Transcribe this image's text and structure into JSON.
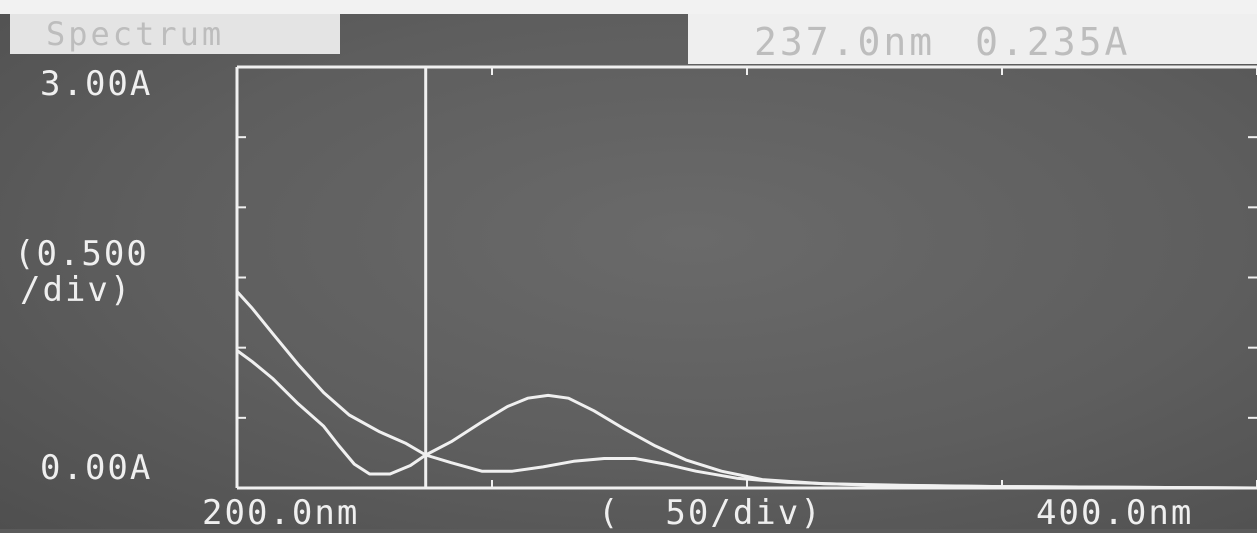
{
  "header": {
    "title": "Spectrum",
    "cursor_wavelength": "237.0nm",
    "cursor_absorbance": "0.235A"
  },
  "axes": {
    "y_max_label": "3.00A",
    "y_scale_label_1": "(0.500",
    "y_scale_label_2": "/div)",
    "y_min_label": "0.00A",
    "x_min_label": "200.0nm",
    "x_scale_label": "(  50/div)",
    "x_max_label": "400.0nm"
  },
  "colors": {
    "screen": "#5e5e5e",
    "trace": "#f0f0f0",
    "text": "#efefef"
  },
  "chart_data": {
    "type": "line",
    "title": "Spectrum",
    "xlabel": "",
    "ylabel": "",
    "xlim": [
      200,
      400
    ],
    "ylim": [
      0,
      3
    ],
    "x_tick_step": 50,
    "y_tick_step": 0.5,
    "cursor": {
      "x": 237.0,
      "y": 0.235
    },
    "series": [
      {
        "points": [
          [
            200,
            1.4
          ],
          [
            203,
            1.28
          ],
          [
            207,
            1.1
          ],
          [
            212,
            0.88
          ],
          [
            217,
            0.68
          ],
          [
            222,
            0.52
          ],
          [
            228,
            0.4
          ],
          [
            233,
            0.32
          ],
          [
            237,
            0.235
          ],
          [
            242,
            0.33
          ],
          [
            248,
            0.47
          ],
          [
            253,
            0.58
          ],
          [
            257,
            0.64
          ],
          [
            261,
            0.66
          ],
          [
            265,
            0.64
          ],
          [
            270,
            0.55
          ],
          [
            276,
            0.42
          ],
          [
            282,
            0.3
          ],
          [
            288,
            0.2
          ],
          [
            295,
            0.12
          ],
          [
            303,
            0.06
          ],
          [
            315,
            0.03
          ],
          [
            330,
            0.02
          ],
          [
            350,
            0.01
          ],
          [
            400,
            0.0
          ]
        ]
      },
      {
        "points": [
          [
            200,
            0.98
          ],
          [
            203,
            0.9
          ],
          [
            207,
            0.78
          ],
          [
            212,
            0.6
          ],
          [
            217,
            0.44
          ],
          [
            220,
            0.3
          ],
          [
            223,
            0.17
          ],
          [
            226,
            0.1
          ],
          [
            230,
            0.1
          ],
          [
            234,
            0.16
          ],
          [
            237,
            0.235
          ],
          [
            242,
            0.18
          ],
          [
            248,
            0.12
          ],
          [
            254,
            0.12
          ],
          [
            260,
            0.15
          ],
          [
            266,
            0.19
          ],
          [
            272,
            0.21
          ],
          [
            278,
            0.21
          ],
          [
            284,
            0.17
          ],
          [
            290,
            0.12
          ],
          [
            298,
            0.07
          ],
          [
            308,
            0.04
          ],
          [
            325,
            0.02
          ],
          [
            350,
            0.01
          ],
          [
            400,
            0.0
          ]
        ]
      }
    ]
  }
}
